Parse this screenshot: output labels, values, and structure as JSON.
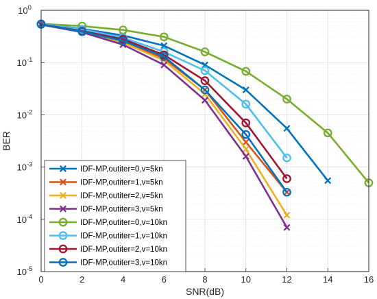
{
  "chart_data": {
    "type": "line",
    "title": "",
    "xlabel": "SNR(dB)",
    "ylabel": "BER",
    "xlim": [
      0,
      16
    ],
    "ylim": [
      1e-05,
      1
    ],
    "yscale": "log",
    "grid": true,
    "minor_grid": true,
    "legend_position": "bottom-left",
    "x_ticks": [
      0,
      2,
      4,
      6,
      8,
      10,
      12,
      14,
      16
    ],
    "y_tick_labels": [
      {
        "base": "10",
        "exp": "0"
      },
      {
        "base": "10",
        "exp": "-1"
      },
      {
        "base": "10",
        "exp": "-2"
      },
      {
        "base": "10",
        "exp": "-3"
      },
      {
        "base": "10",
        "exp": "-4"
      },
      {
        "base": "10",
        "exp": "-5"
      }
    ],
    "series": [
      {
        "name": "IDF-MP,outiter=0,v=5kn",
        "marker": "x",
        "color": "#0072BD",
        "x": [
          0,
          2,
          4,
          6,
          8,
          10,
          12,
          14
        ],
        "y": [
          0.55,
          0.44,
          0.33,
          0.21,
          0.09,
          0.03,
          0.0055,
          0.00055
        ]
      },
      {
        "name": "IDF-MP,outiter=1,v=5kn",
        "marker": "x",
        "color": "#D95319",
        "x": [
          0,
          2,
          4,
          6,
          8,
          10,
          12
        ],
        "y": [
          0.54,
          0.4,
          0.25,
          0.12,
          0.03,
          0.003,
          0.00033
        ]
      },
      {
        "name": "IDF-MP,outiter=2,v=5kn",
        "marker": "x",
        "color": "#EDB120",
        "x": [
          0,
          2,
          4,
          6,
          8,
          10,
          12
        ],
        "y": [
          0.54,
          0.39,
          0.24,
          0.11,
          0.025,
          0.0022,
          0.00012
        ]
      },
      {
        "name": "IDF-MP,outiter=3,v=5kn",
        "marker": "x",
        "color": "#7E2F8E",
        "x": [
          0,
          2,
          4,
          6,
          8,
          10,
          12
        ],
        "y": [
          0.53,
          0.38,
          0.22,
          0.09,
          0.019,
          0.0016,
          7e-05
        ]
      },
      {
        "name": "IDF-MP,outiter=0,v=10kn",
        "marker": "o",
        "color": "#77AC30",
        "x": [
          0,
          2,
          4,
          6,
          8,
          10,
          12,
          14,
          16
        ],
        "y": [
          0.55,
          0.5,
          0.42,
          0.31,
          0.16,
          0.068,
          0.02,
          0.0045,
          0.0005
        ]
      },
      {
        "name": "IDF-MP,outiter=1,v=10kn",
        "marker": "o",
        "color": "#4DBEEE",
        "x": [
          0,
          2,
          4,
          6,
          8,
          10,
          12
        ],
        "y": [
          0.55,
          0.43,
          0.3,
          0.16,
          0.07,
          0.016,
          0.0015
        ]
      },
      {
        "name": "IDF-MP,outiter=2,v=10kn",
        "marker": "o",
        "color": "#A2142F",
        "x": [
          0,
          2,
          4,
          6,
          8,
          10,
          12
        ],
        "y": [
          0.54,
          0.4,
          0.28,
          0.14,
          0.045,
          0.007,
          0.0006
        ]
      },
      {
        "name": "IDF-MP,outiter=3,v=10kn",
        "marker": "o",
        "color": "#0072BD",
        "x": [
          0,
          2,
          4,
          6,
          8,
          10,
          12
        ],
        "y": [
          0.54,
          0.39,
          0.26,
          0.13,
          0.03,
          0.0042,
          0.00033
        ]
      }
    ]
  }
}
